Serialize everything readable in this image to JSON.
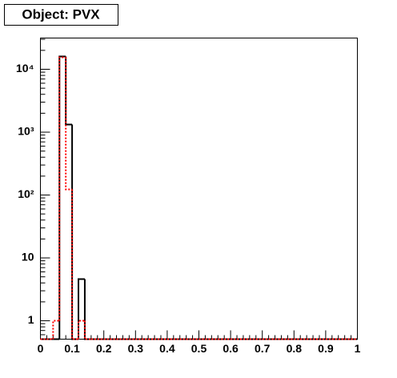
{
  "chart_data": {
    "type": "histogram",
    "title": "Object: PVX",
    "bins": [
      0,
      0.02,
      0.04,
      0.06,
      0.08,
      0.1,
      0.12,
      0.14,
      0.16,
      0.18,
      0.2,
      0.22,
      0.24,
      0.26,
      0.28,
      0.3,
      0.32,
      0.34,
      0.36,
      0.38,
      0.4,
      0.42,
      0.44,
      0.46,
      0.48,
      0.5,
      0.52,
      0.54,
      0.56,
      0.58,
      0.6,
      0.62,
      0.64,
      0.66,
      0.68,
      0.7,
      0.72,
      0.74,
      0.76,
      0.78,
      0.8,
      0.82,
      0.84,
      0.86,
      0.88,
      0.9,
      0.92,
      0.94,
      0.96,
      0.98,
      1
    ],
    "series": [
      {
        "color": "#000000",
        "style": "solid",
        "values": [
          0,
          0,
          0,
          16000,
          1320,
          0,
          4.6,
          0,
          0,
          0,
          0,
          0,
          0,
          0,
          0,
          0,
          0,
          0,
          0,
          0,
          0,
          0,
          0,
          0,
          0,
          0,
          0,
          0,
          0,
          0,
          0,
          0,
          0,
          0,
          0,
          0,
          0,
          0,
          0,
          0,
          0,
          0,
          0,
          0,
          0,
          0,
          0,
          0,
          0,
          0
        ]
      },
      {
        "color": "#ff0000",
        "style": "dotted",
        "values": [
          0,
          0,
          1,
          15500,
          123,
          0,
          1,
          0,
          0,
          0,
          0,
          0,
          0,
          0,
          0,
          0,
          0,
          0,
          0,
          0,
          0,
          0,
          0,
          0,
          0,
          0,
          0,
          0,
          0,
          0,
          0,
          0,
          0,
          0,
          0,
          0,
          0,
          0,
          0,
          0,
          0,
          0,
          0,
          0,
          0,
          0,
          0,
          0,
          0,
          0
        ]
      }
    ],
    "xlim": [
      0,
      1
    ],
    "xticks": [
      0,
      0.1,
      0.2,
      0.3,
      0.4,
      0.5,
      0.6,
      0.7,
      0.8,
      0.9,
      1
    ],
    "ylim": [
      0.51,
      31400
    ],
    "yticks": [
      1,
      10,
      {
        "value": 100,
        "label": "10²"
      },
      {
        "value": 1000,
        "label": "10³"
      },
      {
        "value": 10000,
        "label": "10⁴"
      }
    ],
    "log_y": true
  }
}
